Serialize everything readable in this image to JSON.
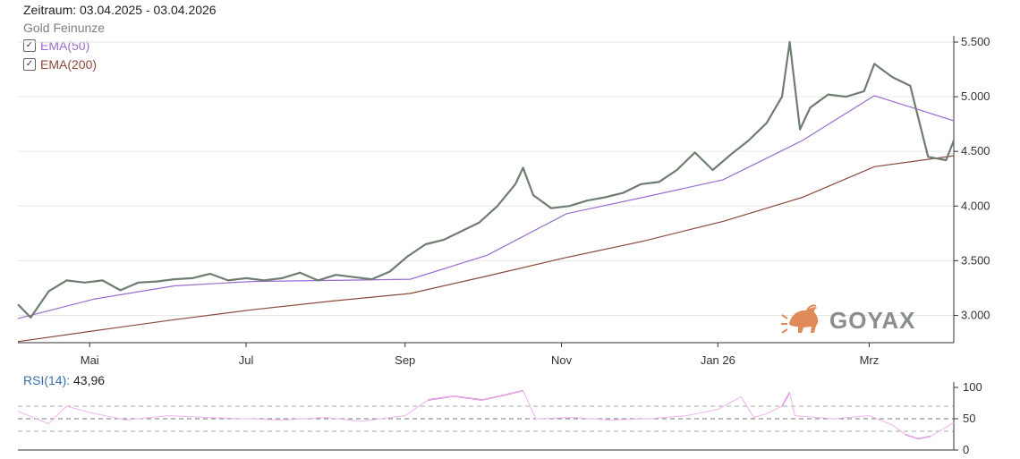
{
  "header": {
    "zeitraum": "Zeitraum: 03.04.2025 - 03.04.2026",
    "subtitle": "Gold Feinunze"
  },
  "legend": [
    {
      "label": "EMA(50)",
      "checked": true,
      "color": "#9b6ccf"
    },
    {
      "label": "EMA(200)",
      "checked": true,
      "color": "#8b4a3c"
    }
  ],
  "logo": {
    "text": "GOYAX",
    "icon": "bull-icon",
    "color": "#e08a5a"
  },
  "colors": {
    "price": "#6f7d70",
    "ema50": "#9b6ccf",
    "ema200": "#8b4a3c",
    "rsi_high": "#a0189b",
    "rsi_mid": "#f0b8ee"
  },
  "chart_data": [
    {
      "type": "line",
      "x_ticks": [
        "Mai",
        "Jul",
        "Sep",
        "Nov",
        "Jan 26",
        "Mrz"
      ],
      "y_ticks": [
        "3.000",
        "3.500",
        "4.000",
        "4.500",
        "5.000",
        "5.500"
      ],
      "ylim": [
        2750,
        5500
      ],
      "grid": true,
      "series": [
        {
          "name": "Gold Feinunze",
          "x": [
            "2025-04-03",
            "2025-04-08",
            "2025-04-15",
            "2025-04-22",
            "2025-04-29",
            "2025-05-06",
            "2025-05-13",
            "2025-05-20",
            "2025-05-27",
            "2025-06-03",
            "2025-06-10",
            "2025-06-17",
            "2025-06-24",
            "2025-07-01",
            "2025-07-08",
            "2025-07-15",
            "2025-07-22",
            "2025-07-29",
            "2025-08-05",
            "2025-08-12",
            "2025-08-19",
            "2025-08-26",
            "2025-09-02",
            "2025-09-09",
            "2025-09-16",
            "2025-09-23",
            "2025-09-30",
            "2025-10-07",
            "2025-10-14",
            "2025-10-17",
            "2025-10-21",
            "2025-10-28",
            "2025-11-04",
            "2025-11-11",
            "2025-11-18",
            "2025-11-25",
            "2025-12-02",
            "2025-12-09",
            "2025-12-16",
            "2025-12-23",
            "2025-12-30",
            "2026-01-06",
            "2026-01-13",
            "2026-01-20",
            "2026-01-26",
            "2026-01-29",
            "2026-02-02",
            "2026-02-06",
            "2026-02-13",
            "2026-02-20",
            "2026-02-27",
            "2026-03-03",
            "2026-03-10",
            "2026-03-17",
            "2026-03-24",
            "2026-03-31",
            "2026-04-03"
          ],
          "values": [
            3100,
            2980,
            3220,
            3320,
            3300,
            3320,
            3230,
            3300,
            3310,
            3330,
            3340,
            3380,
            3320,
            3340,
            3320,
            3340,
            3390,
            3320,
            3370,
            3350,
            3330,
            3400,
            3540,
            3650,
            3690,
            3770,
            3850,
            4000,
            4200,
            4350,
            4100,
            3980,
            4000,
            4050,
            4080,
            4120,
            4200,
            4220,
            4330,
            4490,
            4330,
            4470,
            4600,
            4760,
            5000,
            5500,
            4700,
            4900,
            5020,
            5000,
            5050,
            5300,
            5180,
            5100,
            4450,
            4420,
            4600
          ]
        },
        {
          "name": "EMA(50)",
          "x": [
            "2025-04-03",
            "2025-05-03",
            "2025-06-03",
            "2025-07-03",
            "2025-08-03",
            "2025-09-03",
            "2025-10-03",
            "2025-11-03",
            "2025-12-03",
            "2026-01-03",
            "2026-02-03",
            "2026-03-03",
            "2026-04-03"
          ],
          "values": [
            2970,
            3150,
            3270,
            3310,
            3320,
            3330,
            3550,
            3930,
            4080,
            4240,
            4600,
            5010,
            4780
          ]
        },
        {
          "name": "EMA(200)",
          "x": [
            "2025-04-03",
            "2025-05-03",
            "2025-06-03",
            "2025-07-03",
            "2025-08-03",
            "2025-09-03",
            "2025-10-03",
            "2025-11-03",
            "2025-12-03",
            "2026-01-03",
            "2026-02-03",
            "2026-03-03",
            "2026-04-03"
          ],
          "values": [
            2760,
            2860,
            2960,
            3050,
            3130,
            3200,
            3360,
            3530,
            3680,
            3860,
            4080,
            4360,
            4460
          ]
        }
      ]
    },
    {
      "type": "line",
      "title": "RSI(14)",
      "current_value": "43,96",
      "y_ticks": [
        "0",
        "50",
        "100"
      ],
      "ylim": [
        0,
        100
      ],
      "series": [
        {
          "name": "RSI(14)",
          "x": [
            "2025-04-03",
            "2025-04-15",
            "2025-04-22",
            "2025-05-01",
            "2025-05-15",
            "2025-06-01",
            "2025-06-15",
            "2025-07-01",
            "2025-07-15",
            "2025-08-01",
            "2025-08-15",
            "2025-09-01",
            "2025-09-10",
            "2025-09-20",
            "2025-10-01",
            "2025-10-10",
            "2025-10-17",
            "2025-10-22",
            "2025-11-05",
            "2025-11-20",
            "2025-12-05",
            "2025-12-20",
            "2026-01-01",
            "2026-01-10",
            "2026-01-15",
            "2026-01-20",
            "2026-01-26",
            "2026-01-29",
            "2026-01-31",
            "2026-02-15",
            "2026-03-01",
            "2026-03-10",
            "2026-03-15",
            "2026-03-20",
            "2026-03-25",
            "2026-04-03"
          ],
          "values": [
            62,
            42,
            70,
            60,
            48,
            55,
            52,
            50,
            48,
            52,
            46,
            55,
            80,
            86,
            80,
            88,
            95,
            50,
            52,
            48,
            50,
            55,
            65,
            85,
            52,
            58,
            70,
            92,
            55,
            50,
            55,
            40,
            25,
            18,
            22,
            44
          ]
        }
      ]
    }
  ]
}
